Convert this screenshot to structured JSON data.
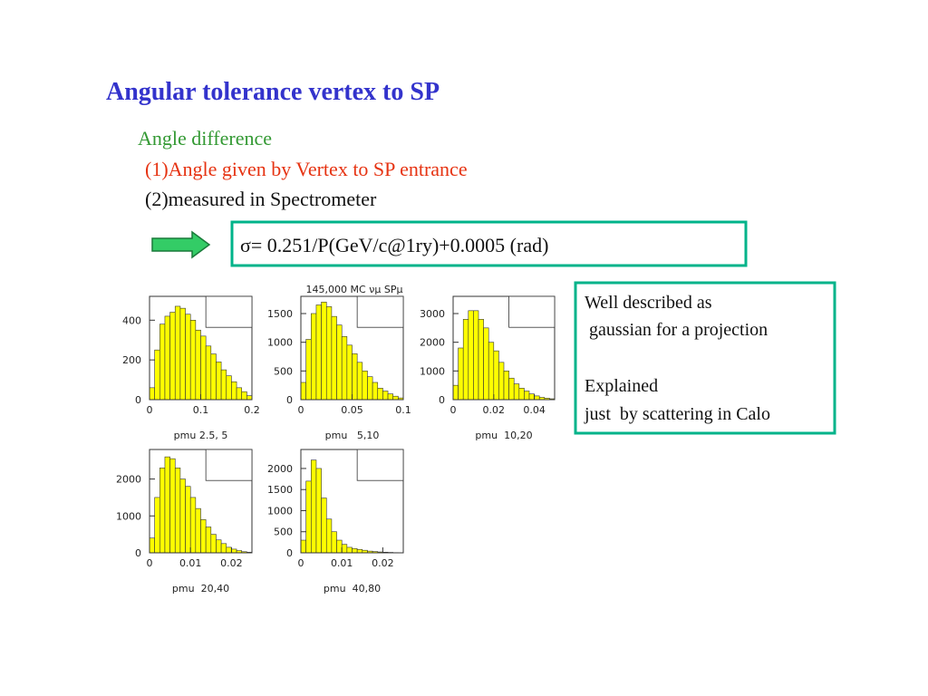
{
  "title": "Angular tolerance vertex to SP",
  "subtitle": "Angle difference",
  "items": [
    "(1)Angle given by Vertex to SP entrance",
    "(2)measured in Spectrometer"
  ],
  "formula": "σ= 0.251/P(GeV/c@1ry)+0.0005 (rad)",
  "note": [
    [
      "Well described as",
      " gaussian for a projection"
    ],
    [
      "Explained",
      "just  by scattering in Calo"
    ]
  ],
  "plots_title": "145,000 MC νμ SPμ",
  "chart_data": [
    {
      "type": "histogram",
      "xlabel": "pmu 2.5, 5",
      "color": "#ffff00",
      "bins": [
        0,
        0.01,
        0.02,
        0.03,
        0.04,
        0.05,
        0.06,
        0.07,
        0.08,
        0.09,
        0.1,
        0.11,
        0.12,
        0.13,
        0.14,
        0.15,
        0.16,
        0.17,
        0.18,
        0.19,
        0.2
      ],
      "values": [
        60,
        250,
        380,
        420,
        440,
        470,
        460,
        430,
        400,
        350,
        320,
        270,
        230,
        190,
        150,
        120,
        90,
        60,
        40,
        20
      ],
      "xlim": [
        0,
        0.2
      ],
      "ylim": [
        0,
        520
      ],
      "xticks": [
        0,
        0.1,
        0.2
      ],
      "yticks": [
        0,
        200,
        400
      ]
    },
    {
      "type": "histogram",
      "xlabel": "pmu   5,10",
      "color": "#ffff00",
      "bins": [
        0,
        0.005,
        0.01,
        0.015,
        0.02,
        0.025,
        0.03,
        0.035,
        0.04,
        0.045,
        0.05,
        0.055,
        0.06,
        0.065,
        0.07,
        0.075,
        0.08,
        0.085,
        0.09,
        0.095,
        0.1
      ],
      "values": [
        300,
        1050,
        1500,
        1650,
        1700,
        1620,
        1450,
        1300,
        1100,
        950,
        800,
        650,
        500,
        400,
        300,
        200,
        150,
        100,
        60,
        30
      ],
      "xlim": [
        0,
        0.1
      ],
      "ylim": [
        0,
        1800
      ],
      "xticks": [
        0,
        0.05,
        0.1
      ],
      "yticks": [
        0,
        500,
        1000,
        1500
      ]
    },
    {
      "type": "histogram",
      "xlabel": "pmu  10,20",
      "color": "#ffff00",
      "bins": [
        0,
        0.0025,
        0.005,
        0.0075,
        0.01,
        0.0125,
        0.015,
        0.0175,
        0.02,
        0.0225,
        0.025,
        0.0275,
        0.03,
        0.0325,
        0.035,
        0.0375,
        0.04,
        0.0425,
        0.045,
        0.0475,
        0.05
      ],
      "values": [
        500,
        1800,
        2800,
        3100,
        3100,
        2800,
        2500,
        2000,
        1700,
        1300,
        1000,
        750,
        550,
        400,
        300,
        200,
        130,
        80,
        50,
        30
      ],
      "xlim": [
        0,
        0.05
      ],
      "ylim": [
        0,
        3600
      ],
      "xticks": [
        0,
        0.02,
        0.04
      ],
      "yticks": [
        0,
        1000,
        2000,
        3000
      ]
    },
    {
      "type": "histogram",
      "xlabel": "pmu  20,40",
      "color": "#ffff00",
      "bins": [
        0,
        0.00125,
        0.0025,
        0.00375,
        0.005,
        0.00625,
        0.0075,
        0.00875,
        0.01,
        0.01125,
        0.0125,
        0.01375,
        0.015,
        0.01625,
        0.0175,
        0.01875,
        0.02,
        0.02125,
        0.0225,
        0.02375,
        0.025
      ],
      "values": [
        400,
        1500,
        2300,
        2600,
        2550,
        2300,
        2000,
        1800,
        1500,
        1200,
        900,
        700,
        500,
        350,
        250,
        150,
        100,
        60,
        30,
        15
      ],
      "xlim": [
        0,
        0.025
      ],
      "ylim": [
        0,
        2800
      ],
      "xticks": [
        0,
        0.01,
        0.02
      ],
      "yticks": [
        0,
        1000,
        2000
      ]
    },
    {
      "type": "histogram",
      "xlabel": "pmu  40,80",
      "color": "#ffff00",
      "bins": [
        0,
        0.00125,
        0.0025,
        0.00375,
        0.005,
        0.00625,
        0.0075,
        0.00875,
        0.01,
        0.01125,
        0.0125,
        0.01375,
        0.015,
        0.01625,
        0.0175,
        0.01875,
        0.02,
        0.02125,
        0.0225,
        0.02375,
        0.025
      ],
      "values": [
        300,
        1700,
        2200,
        2000,
        1300,
        800,
        500,
        300,
        200,
        130,
        100,
        80,
        60,
        40,
        30,
        20,
        15,
        10,
        5,
        3
      ],
      "xlim": [
        0,
        0.025
      ],
      "ylim": [
        0,
        2450
      ],
      "xticks": [
        0,
        0.01,
        0.02
      ],
      "yticks": [
        0,
        500,
        1000,
        1500,
        2000
      ]
    }
  ]
}
